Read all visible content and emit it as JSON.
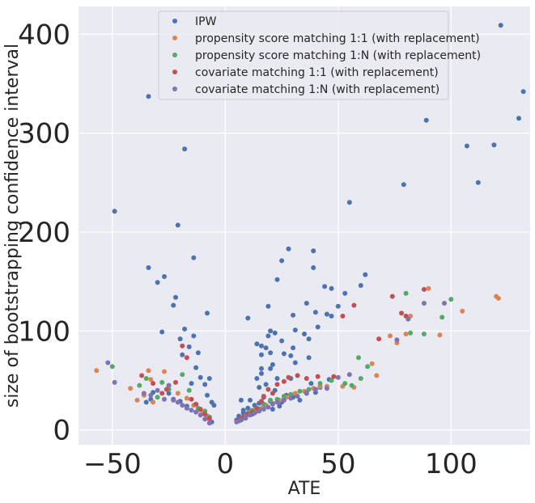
{
  "chart_data": {
    "type": "scatter",
    "title": "",
    "xlabel": "ATE",
    "ylabel": "size of bootstrapping confidence interval",
    "xlim": [
      -65,
      135
    ],
    "ylim": [
      -15,
      428
    ],
    "xticks": [
      -50,
      0,
      50,
      100
    ],
    "yticks": [
      0,
      100,
      200,
      300,
      400
    ],
    "grid": true,
    "legend_position": "top-center",
    "colors": {
      "background": "#EAEAF2",
      "grid": "#FFFFFF",
      "IPW": "#4C72B0",
      "psm_1_1": "#DD8452",
      "psm_1_N": "#55A868",
      "cov_1_1": "#C44E52",
      "cov_1_N": "#8172B3"
    },
    "series": [
      {
        "name": "IPW",
        "color": "#4C72B0",
        "points": [
          [
            122,
            409
          ],
          [
            132,
            342
          ],
          [
            -34,
            337
          ],
          [
            130,
            315
          ],
          [
            89,
            313
          ],
          [
            -18,
            284
          ],
          [
            107,
            287
          ],
          [
            119,
            288
          ],
          [
            112,
            250
          ],
          [
            79,
            248
          ],
          [
            55,
            230
          ],
          [
            -49,
            221
          ],
          [
            -21,
            207
          ],
          [
            28,
            183
          ],
          [
            -14,
            174
          ],
          [
            25,
            171
          ],
          [
            39,
            181
          ],
          [
            -34,
            164
          ],
          [
            39,
            164
          ],
          [
            62,
            157
          ],
          [
            -27,
            155
          ],
          [
            -30,
            149
          ],
          [
            23,
            152
          ],
          [
            -22,
            134
          ],
          [
            -23,
            126
          ],
          [
            44,
            145
          ],
          [
            47,
            143
          ],
          [
            53,
            138
          ],
          [
            60,
            146
          ],
          [
            -8,
            118
          ],
          [
            19,
            125
          ],
          [
            36,
            128
          ],
          [
            40,
            119
          ],
          [
            45,
            117
          ],
          [
            47,
            115
          ],
          [
            41,
            104
          ],
          [
            30,
            116
          ],
          [
            -28,
            99
          ],
          [
            -18,
            102
          ],
          [
            -20,
            92
          ],
          [
            -14,
            95
          ],
          [
            -16,
            84
          ],
          [
            -12,
            78
          ],
          [
            -19,
            76
          ],
          [
            -13,
            63
          ],
          [
            10,
            113
          ],
          [
            14,
            87
          ],
          [
            16,
            85
          ],
          [
            16,
            76
          ],
          [
            18,
            83
          ],
          [
            19,
            95
          ],
          [
            20,
            100
          ],
          [
            22,
            98
          ],
          [
            20,
            78
          ],
          [
            21,
            66
          ],
          [
            25,
            90
          ],
          [
            26,
            77
          ],
          [
            29,
            75
          ],
          [
            31,
            101
          ],
          [
            30,
            83
          ],
          [
            35,
            97
          ],
          [
            37,
            92
          ],
          [
            50,
            125
          ],
          [
            31,
            68
          ],
          [
            37,
            73
          ],
          [
            -11,
            53
          ],
          [
            -9,
            46
          ],
          [
            -7,
            52
          ],
          [
            -8,
            35
          ],
          [
            -6,
            28
          ],
          [
            -15,
            47
          ],
          [
            -5,
            25
          ],
          [
            7,
            30
          ],
          [
            8,
            20
          ],
          [
            11,
            30
          ],
          [
            14,
            52
          ],
          [
            15,
            43
          ],
          [
            16,
            62
          ],
          [
            16,
            57
          ],
          [
            17,
            33
          ],
          [
            18,
            46
          ],
          [
            20,
            62
          ],
          [
            22,
            40
          ],
          [
            23,
            52
          ],
          [
            25,
            28
          ],
          [
            27,
            35
          ],
          [
            29,
            52
          ],
          [
            30,
            33
          ],
          [
            33,
            30
          ],
          [
            36,
            37
          ],
          [
            38,
            47
          ],
          [
            40,
            38
          ],
          [
            42,
            43
          ],
          [
            46,
            51
          ],
          [
            -35,
            28
          ],
          [
            -33,
            31
          ],
          [
            -32,
            38
          ],
          [
            -25,
            37
          ],
          [
            -23,
            31
          ],
          [
            -20,
            29
          ],
          [
            -17,
            24
          ],
          [
            -12,
            20
          ],
          [
            -10,
            17
          ],
          [
            -8,
            14
          ],
          [
            -7,
            11
          ],
          [
            -6,
            8
          ],
          [
            5,
            10
          ],
          [
            6,
            14
          ],
          [
            8,
            17
          ],
          [
            9,
            12
          ],
          [
            10,
            22
          ],
          [
            12,
            16
          ],
          [
            13,
            25
          ],
          [
            14,
            19
          ],
          [
            15,
            27
          ],
          [
            18,
            25
          ],
          [
            20,
            29
          ],
          [
            21,
            21
          ],
          [
            24,
            24
          ],
          [
            26,
            31
          ]
        ]
      },
      {
        "name": "propensity score matching 1:1 (with replacement)",
        "color": "#DD8452",
        "points": [
          [
            -57,
            60
          ],
          [
            -42,
            42
          ],
          [
            -39,
            30
          ],
          [
            -34,
            60
          ],
          [
            -33,
            51
          ],
          [
            -36,
            35
          ],
          [
            -32,
            28
          ],
          [
            -27,
            59
          ],
          [
            -25,
            45
          ],
          [
            -21,
            37
          ],
          [
            -17,
            32
          ],
          [
            -14,
            25
          ],
          [
            -12,
            20
          ],
          [
            -10,
            17
          ],
          [
            -8,
            14
          ],
          [
            -7,
            11
          ],
          [
            7,
            10
          ],
          [
            9,
            14
          ],
          [
            11,
            18
          ],
          [
            13,
            20
          ],
          [
            16,
            22
          ],
          [
            18,
            25
          ],
          [
            21,
            27
          ],
          [
            24,
            30
          ],
          [
            27,
            33
          ],
          [
            31,
            37
          ],
          [
            35,
            39
          ],
          [
            39,
            42
          ],
          [
            42,
            44
          ],
          [
            45,
            44
          ],
          [
            52,
            44
          ],
          [
            57,
            43
          ],
          [
            65,
            67
          ],
          [
            67,
            55
          ],
          [
            73,
            95
          ],
          [
            76,
            88
          ],
          [
            80,
            97
          ],
          [
            82,
            115
          ],
          [
            90,
            143
          ],
          [
            95,
            96
          ],
          [
            105,
            120
          ],
          [
            120,
            135
          ],
          [
            121,
            133
          ]
        ]
      },
      {
        "name": "propensity score matching 1:N (with replacement)",
        "color": "#55A868",
        "points": [
          [
            -50,
            64
          ],
          [
            -38,
            45
          ],
          [
            -35,
            52
          ],
          [
            -30,
            33
          ],
          [
            -28,
            48
          ],
          [
            -25,
            41
          ],
          [
            -19,
            56
          ],
          [
            -16,
            40
          ],
          [
            -12,
            22
          ],
          [
            -9,
            19
          ],
          [
            -7,
            13
          ],
          [
            6,
            9
          ],
          [
            8,
            12
          ],
          [
            10,
            17
          ],
          [
            12,
            20
          ],
          [
            15,
            21
          ],
          [
            17,
            26
          ],
          [
            20,
            30
          ],
          [
            23,
            31
          ],
          [
            26,
            34
          ],
          [
            29,
            36
          ],
          [
            33,
            39
          ],
          [
            37,
            41
          ],
          [
            42,
            47
          ],
          [
            47,
            50
          ],
          [
            53,
            47
          ],
          [
            56,
            45
          ],
          [
            59,
            73
          ],
          [
            60,
            52
          ],
          [
            63,
            64
          ],
          [
            80,
            138
          ],
          [
            82,
            98
          ],
          [
            88,
            97
          ],
          [
            96,
            114
          ],
          [
            100,
            132
          ]
        ]
      },
      {
        "name": "covariate matching 1:1 (with replacement)",
        "color": "#C44E52",
        "points": [
          [
            -37,
            55
          ],
          [
            -32,
            47
          ],
          [
            -28,
            37
          ],
          [
            -26,
            41
          ],
          [
            -22,
            48
          ],
          [
            -19,
            85
          ],
          [
            -17,
            73
          ],
          [
            -15,
            31
          ],
          [
            -13,
            26
          ],
          [
            -11,
            21
          ],
          [
            -9,
            16
          ],
          [
            -7,
            12
          ],
          [
            6,
            10
          ],
          [
            8,
            13
          ],
          [
            10,
            16
          ],
          [
            12,
            18
          ],
          [
            14,
            22
          ],
          [
            16,
            29
          ],
          [
            17,
            34
          ],
          [
            19,
            41
          ],
          [
            21,
            37
          ],
          [
            23,
            46
          ],
          [
            26,
            49
          ],
          [
            28,
            53
          ],
          [
            32,
            55
          ],
          [
            36,
            52
          ],
          [
            41,
            54
          ],
          [
            48,
            54
          ],
          [
            52,
            115
          ],
          [
            57,
            126
          ],
          [
            68,
            92
          ],
          [
            74,
            135
          ],
          [
            78,
            118
          ],
          [
            80,
            115
          ],
          [
            88,
            142
          ]
        ]
      },
      {
        "name": "covariate matching 1:N (with replacement)",
        "color": "#8172B3",
        "points": [
          [
            -52,
            68
          ],
          [
            -49,
            48
          ],
          [
            -36,
            37
          ],
          [
            -33,
            35
          ],
          [
            -30,
            40
          ],
          [
            -27,
            31
          ],
          [
            -25,
            45
          ],
          [
            -23,
            30
          ],
          [
            -21,
            28
          ],
          [
            -19,
            25
          ],
          [
            -17,
            22
          ],
          [
            -15,
            20
          ],
          [
            -13,
            18
          ],
          [
            -11,
            15
          ],
          [
            -9,
            11
          ],
          [
            -7,
            7
          ],
          [
            5,
            8
          ],
          [
            7,
            10
          ],
          [
            9,
            13
          ],
          [
            11,
            15
          ],
          [
            13,
            17
          ],
          [
            15,
            19
          ],
          [
            17,
            21
          ],
          [
            19,
            23
          ],
          [
            21,
            26
          ],
          [
            23,
            28
          ],
          [
            26,
            30
          ],
          [
            29,
            32
          ],
          [
            32,
            34
          ],
          [
            36,
            38
          ],
          [
            40,
            41
          ],
          [
            45,
            42
          ],
          [
            50,
            53
          ],
          [
            55,
            56
          ],
          [
            76,
            91
          ],
          [
            81,
            112
          ],
          [
            88,
            128
          ],
          [
            97,
            128
          ]
        ]
      }
    ]
  }
}
